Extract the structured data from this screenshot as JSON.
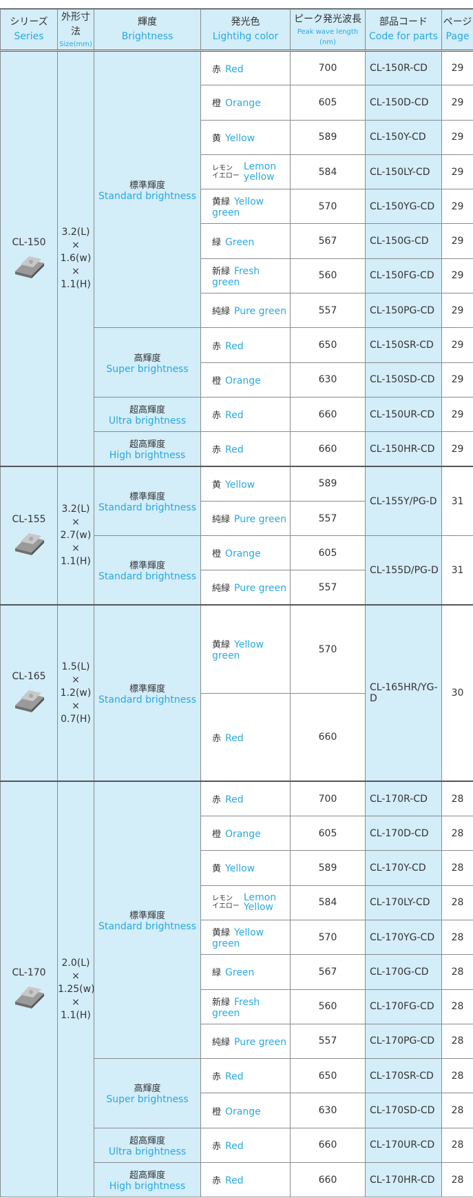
{
  "header": {
    "series_jp": "シリーズ",
    "series_en": "Series",
    "size_jp": "外形寸法",
    "size_en": "Size(mm)",
    "brightness_jp": "輝度",
    "brightness_en": "Brightness",
    "color_jp": "発光色",
    "color_en": "Lightihg color",
    "wave_jp": "ピーク発光波長",
    "wave_en": "Peak wave length (nm)",
    "code_jp": "部品コード",
    "code_en": "Code for parts",
    "page_jp": "ページ",
    "page_en": "Page"
  },
  "groups": [
    {
      "series": "CL-150",
      "size": [
        "3.2(L)",
        "×",
        "1.6(w)",
        "×",
        "1.1(H)"
      ],
      "brightness": [
        {
          "jp": "標準輝度",
          "en": "Standard brightness",
          "parts": [
            {
              "code": "CL-150R-CD",
              "page": 29,
              "colors": [
                {
                  "jp": "赤",
                  "en": "Red",
                  "wavelength": 700
                }
              ]
            },
            {
              "code": "CL-150D-CD",
              "page": 29,
              "colors": [
                {
                  "jp": "橙",
                  "en": "Orange",
                  "wavelength": 605
                }
              ]
            },
            {
              "code": "CL-150Y-CD",
              "page": 29,
              "colors": [
                {
                  "jp": "黄",
                  "en": "Yellow",
                  "wavelength": 589
                }
              ]
            },
            {
              "code": "CL-150LY-CD",
              "page": 29,
              "colors": [
                {
                  "jp": [
                    "レモン",
                    "イエロー"
                  ],
                  "en": "Lemon yellow",
                  "wavelength": 584
                }
              ]
            },
            {
              "code": "CL-150YG-CD",
              "page": 29,
              "colors": [
                {
                  "jp": "黄緑",
                  "en": "Yellow green",
                  "wavelength": 570
                }
              ]
            },
            {
              "code": "CL-150G-CD",
              "page": 29,
              "colors": [
                {
                  "jp": "緑",
                  "en": "Green",
                  "wavelength": 567
                }
              ]
            },
            {
              "code": "CL-150FG-CD",
              "page": 29,
              "colors": [
                {
                  "jp": "新緑",
                  "en": "Fresh green",
                  "wavelength": 560
                }
              ]
            },
            {
              "code": "CL-150PG-CD",
              "page": 29,
              "colors": [
                {
                  "jp": "純緑",
                  "en": "Pure green",
                  "wavelength": 557
                }
              ]
            }
          ]
        },
        {
          "jp": "高輝度",
          "en": "Super brightness",
          "parts": [
            {
              "code": "CL-150SR-CD",
              "page": 29,
              "colors": [
                {
                  "jp": "赤",
                  "en": "Red",
                  "wavelength": 650
                }
              ]
            },
            {
              "code": "CL-150SD-CD",
              "page": 29,
              "colors": [
                {
                  "jp": "橙",
                  "en": "Orange",
                  "wavelength": 630
                }
              ]
            }
          ]
        },
        {
          "jp": "超高輝度",
          "en": "Ultra brightness",
          "parts": [
            {
              "code": "CL-150UR-CD",
              "page": 29,
              "colors": [
                {
                  "jp": "赤",
                  "en": "Red",
                  "wavelength": 660
                }
              ]
            }
          ]
        },
        {
          "jp": "超高輝度",
          "en": "High brightness",
          "parts": [
            {
              "code": "CL-150HR-CD",
              "page": 29,
              "colors": [
                {
                  "jp": "赤",
                  "en": "Red",
                  "wavelength": 660
                }
              ]
            }
          ]
        }
      ]
    },
    {
      "series": "CL-155",
      "size": [
        "3.2(L)",
        "×",
        "2.7(w)",
        "×",
        "1.1(H)"
      ],
      "brightness": [
        {
          "jp": "標準輝度",
          "en": "Standard brightness",
          "parts": [
            {
              "code": "CL-155Y/PG-D",
              "page": 31,
              "colors": [
                {
                  "jp": "黄",
                  "en": "Yellow",
                  "wavelength": 589
                },
                {
                  "jp": "純緑",
                  "en": "Pure green",
                  "wavelength": 557
                }
              ]
            }
          ]
        },
        {
          "jp": "標準輝度",
          "en": "Standard brightness",
          "parts": [
            {
              "code": "CL-155D/PG-D",
              "page": 31,
              "colors": [
                {
                  "jp": "橙",
                  "en": "Orange",
                  "wavelength": 605
                },
                {
                  "jp": "純緑",
                  "en": "Pure green",
                  "wavelength": 557
                }
              ]
            }
          ]
        }
      ]
    },
    {
      "series": "CL-165",
      "size": [
        "1.5(L)",
        "×",
        "1.2(w)",
        "×",
        "0.7(H)"
      ],
      "brightness": [
        {
          "jp": "標準輝度",
          "en": "Standard brightness",
          "parts": [
            {
              "code": "CL-165HR/YG-D",
              "page": 30,
              "colors": [
                {
                  "jp": "黄緑",
                  "en": "Yellow green",
                  "wavelength": 570
                },
                {
                  "jp": "赤",
                  "en": "Red",
                  "wavelength": 660
                }
              ]
            }
          ]
        }
      ]
    },
    {
      "series": "CL-170",
      "size": [
        "2.0(L)",
        "×",
        "1.25(w)",
        "×",
        "1.1(H)"
      ],
      "brightness": [
        {
          "jp": "標準輝度",
          "en": "Standard brightness",
          "parts": [
            {
              "code": "CL-170R-CD",
              "page": 28,
              "colors": [
                {
                  "jp": "赤",
                  "en": "Red",
                  "wavelength": 700
                }
              ]
            },
            {
              "code": "CL-170D-CD",
              "page": 28,
              "colors": [
                {
                  "jp": "橙",
                  "en": "Orange",
                  "wavelength": 605
                }
              ]
            },
            {
              "code": "CL-170Y-CD",
              "page": 28,
              "colors": [
                {
                  "jp": "黄",
                  "en": "Yellow",
                  "wavelength": 589
                }
              ]
            },
            {
              "code": "CL-170LY-CD",
              "page": 28,
              "colors": [
                {
                  "jp": [
                    "レモン",
                    "イエロー"
                  ],
                  "en": "Lemon Yellow",
                  "wavelength": 584
                }
              ]
            },
            {
              "code": "CL-170YG-CD",
              "page": 28,
              "colors": [
                {
                  "jp": "黄緑",
                  "en": "Yellow green",
                  "wavelength": 570
                }
              ]
            },
            {
              "code": "CL-170G-CD",
              "page": 28,
              "colors": [
                {
                  "jp": "緑",
                  "en": "Green",
                  "wavelength": 567
                }
              ]
            },
            {
              "code": "CL-170FG-CD",
              "page": 28,
              "colors": [
                {
                  "jp": "新緑",
                  "en": "Fresh green",
                  "wavelength": 560
                }
              ]
            },
            {
              "code": "CL-170PG-CD",
              "page": 28,
              "colors": [
                {
                  "jp": "純緑",
                  "en": "Pure green",
                  "wavelength": 557
                }
              ]
            }
          ]
        },
        {
          "jp": "高輝度",
          "en": "Super brightness",
          "parts": [
            {
              "code": "CL-170SR-CD",
              "page": 28,
              "colors": [
                {
                  "jp": "赤",
                  "en": "Red",
                  "wavelength": 650
                }
              ]
            },
            {
              "code": "CL-170SD-CD",
              "page": 28,
              "colors": [
                {
                  "jp": "橙",
                  "en": "Orange",
                  "wavelength": 630
                }
              ]
            }
          ]
        },
        {
          "jp": "超高輝度",
          "en": "Ultra brightness",
          "parts": [
            {
              "code": "CL-170UR-CD",
              "page": 28,
              "colors": [
                {
                  "jp": "赤",
                  "en": "Red",
                  "wavelength": 660
                }
              ]
            }
          ]
        },
        {
          "jp": "超高輝度",
          "en": "High brightness",
          "parts": [
            {
              "code": "CL-170HR-CD",
              "page": 28,
              "colors": [
                {
                  "jp": "赤",
                  "en": "Red",
                  "wavelength": 660
                }
              ]
            }
          ]
        }
      ]
    }
  ]
}
